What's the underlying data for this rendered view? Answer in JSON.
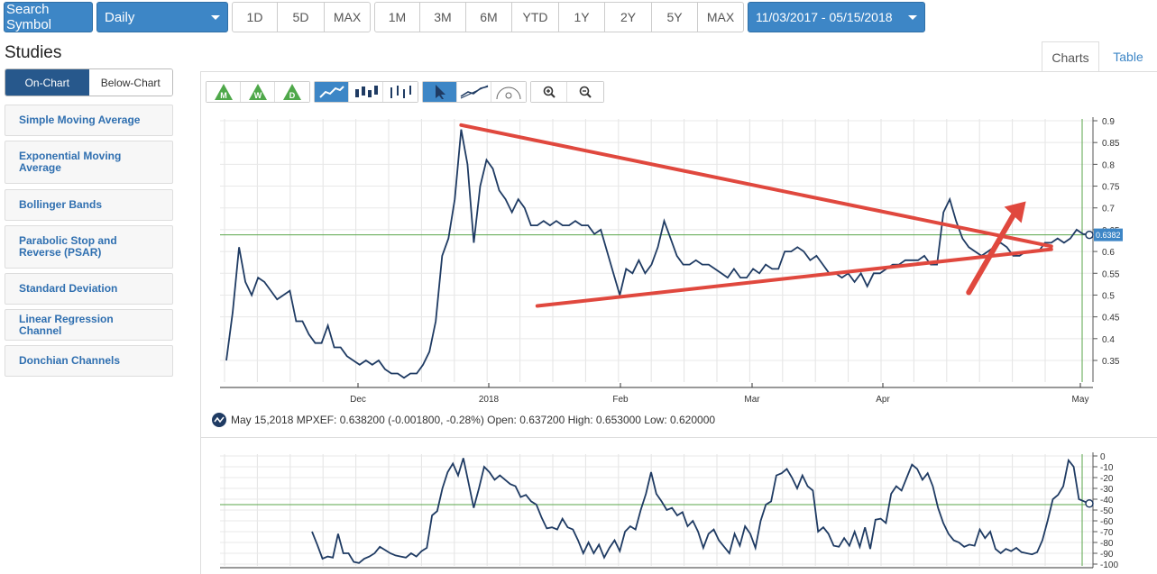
{
  "toolbar": {
    "search_label": "Search Symbol",
    "interval_label": "Daily",
    "ranges_a": [
      "1D",
      "5D",
      "MAX"
    ],
    "ranges_b": [
      "1M",
      "3M",
      "6M",
      "YTD",
      "1Y",
      "2Y",
      "5Y",
      "MAX"
    ],
    "date_range": "11/03/2017 - 05/15/2018"
  },
  "studies": {
    "title": "Studies",
    "tabs": [
      "On-Chart",
      "Below-Chart"
    ],
    "items": [
      "Simple Moving Average",
      "Exponential Moving Average",
      "Bollinger Bands",
      "Parabolic Stop and Reverse (PSAR)",
      "Standard Deviation",
      "Linear Regression Channel",
      "Donchian Channels"
    ]
  },
  "view_tabs": [
    "Charts",
    "Table"
  ],
  "tools": {
    "period_icons": [
      "M",
      "W",
      "D"
    ]
  },
  "info_line": "May 15,2018 MPXEF: 0.638200 (-0.001800, -0.28%) Open: 0.637200 High: 0.653000 Low: 0.620000",
  "colors": {
    "accent": "#3d86c6",
    "series": "#1f3b63",
    "trendline": "#e0483e",
    "last_line": "#5aa64a"
  },
  "chart_data": [
    {
      "type": "line",
      "ticker": "MPXEF",
      "x_tick_labels": [
        "Dec",
        "2018",
        "Feb",
        "Mar",
        "Apr",
        "May"
      ],
      "y_ticks": [
        0.35,
        0.4,
        0.45,
        0.5,
        0.55,
        0.6,
        0.65,
        0.7,
        0.75,
        0.8,
        0.85,
        0.9
      ],
      "ylim": [
        0.3,
        0.9
      ],
      "last_value_label": "0.6382",
      "last_value": 0.6382,
      "grid": true,
      "values": [
        0.35,
        0.46,
        0.61,
        0.53,
        0.5,
        0.54,
        0.53,
        0.51,
        0.49,
        0.5,
        0.51,
        0.44,
        0.44,
        0.41,
        0.39,
        0.39,
        0.43,
        0.38,
        0.38,
        0.36,
        0.35,
        0.34,
        0.35,
        0.34,
        0.35,
        0.33,
        0.32,
        0.32,
        0.31,
        0.32,
        0.32,
        0.34,
        0.37,
        0.44,
        0.59,
        0.63,
        0.72,
        0.88,
        0.8,
        0.62,
        0.75,
        0.81,
        0.79,
        0.74,
        0.72,
        0.69,
        0.72,
        0.7,
        0.66,
        0.66,
        0.67,
        0.66,
        0.67,
        0.66,
        0.66,
        0.67,
        0.66,
        0.66,
        0.64,
        0.65,
        0.6,
        0.55,
        0.5,
        0.56,
        0.55,
        0.58,
        0.55,
        0.57,
        0.61,
        0.67,
        0.63,
        0.59,
        0.57,
        0.57,
        0.58,
        0.57,
        0.57,
        0.56,
        0.55,
        0.54,
        0.56,
        0.54,
        0.54,
        0.56,
        0.55,
        0.57,
        0.56,
        0.56,
        0.6,
        0.6,
        0.61,
        0.6,
        0.58,
        0.59,
        0.57,
        0.55,
        0.55,
        0.54,
        0.55,
        0.53,
        0.55,
        0.52,
        0.55,
        0.55,
        0.56,
        0.57,
        0.57,
        0.58,
        0.58,
        0.58,
        0.59,
        0.57,
        0.57,
        0.69,
        0.72,
        0.67,
        0.63,
        0.61,
        0.6,
        0.59,
        0.6,
        0.61,
        0.62,
        0.61,
        0.59,
        0.59,
        0.6,
        0.6,
        0.6,
        0.62,
        0.62,
        0.63,
        0.62,
        0.63,
        0.65,
        0.64,
        0.6382
      ],
      "annotations": {
        "trendlines": [
          {
            "from": {
              "index": 37,
              "value": 0.89
            },
            "to": {
              "index": 130,
              "value": 0.612
            }
          },
          {
            "from": {
              "index": 49,
              "value": 0.475
            },
            "to": {
              "index": 130,
              "value": 0.605
            }
          }
        ],
        "arrow": {
          "from": {
            "index": 117,
            "value": 0.506
          },
          "to": {
            "index": 126,
            "value": 0.715
          }
        }
      }
    },
    {
      "type": "line",
      "y_ticks": [
        0,
        -10,
        -20,
        -30,
        -40,
        -50,
        -60,
        -70,
        -80,
        -90,
        -100
      ],
      "ylim": [
        -100,
        0
      ],
      "level_line": -45,
      "values": [
        -70,
        -82,
        -95,
        -93,
        -94,
        -72,
        -90,
        -90,
        -98,
        -99,
        -95,
        -93,
        -90,
        -84,
        -87,
        -90,
        -92,
        -93,
        -94,
        -90,
        -93,
        -88,
        -85,
        -55,
        -51,
        -30,
        -15,
        -7,
        -18,
        -2,
        -25,
        -48,
        -30,
        -10,
        -15,
        -22,
        -18,
        -22,
        -26,
        -28,
        -38,
        -36,
        -42,
        -45,
        -57,
        -67,
        -66,
        -68,
        -58,
        -66,
        -68,
        -78,
        -90,
        -80,
        -90,
        -82,
        -94,
        -85,
        -78,
        -88,
        -70,
        -65,
        -68,
        -50,
        -35,
        -15,
        -35,
        -42,
        -50,
        -48,
        -55,
        -52,
        -65,
        -60,
        -70,
        -85,
        -72,
        -68,
        -78,
        -84,
        -90,
        -72,
        -83,
        -65,
        -72,
        -85,
        -60,
        -45,
        -42,
        -18,
        -16,
        -12,
        -20,
        -30,
        -18,
        -28,
        -32,
        -70,
        -66,
        -72,
        -83,
        -84,
        -76,
        -83,
        -70,
        -84,
        -66,
        -86,
        -59,
        -58,
        -62,
        -35,
        -28,
        -32,
        -20,
        -8,
        -12,
        -22,
        -16,
        -28,
        -48,
        -62,
        -72,
        -78,
        -80,
        -84,
        -82,
        -83,
        -68,
        -76,
        -70,
        -86,
        -90,
        -86,
        -88,
        -85,
        -89,
        -90,
        -91,
        -89,
        -78,
        -60,
        -40,
        -36,
        -28,
        -4,
        -10,
        -40,
        -42,
        -44
      ]
    }
  ]
}
